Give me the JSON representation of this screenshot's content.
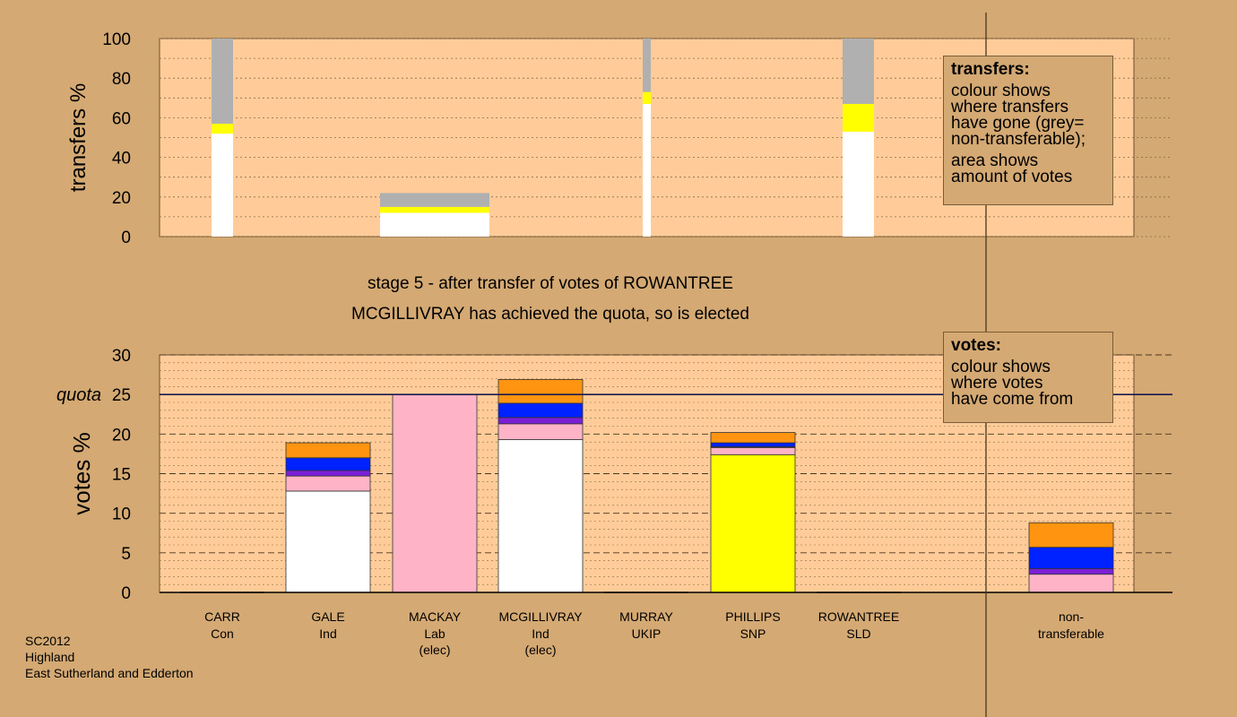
{
  "colors": {
    "background": "#d4a973",
    "plot": "#ffcc99",
    "grey": "#b0b0b0",
    "white": "#ffffff",
    "yellow": "#ffff00",
    "pink": "#ffb3c6",
    "purple": "#7b1fd6",
    "blue": "#0022ff",
    "orange": "#ff9410"
  },
  "captions": {
    "stage": "stage 5 - after transfer of votes of ROWANTREE",
    "status": "MCGILLIVRAY has achieved the quota, so is elected"
  },
  "legends": {
    "transfers": {
      "title": "transfers:",
      "para1": "colour shows\nwhere transfers\nhave gone (grey=\nnon-transferable);",
      "para2": "area shows\namount of votes"
    },
    "votes": {
      "title": "votes:",
      "para1": "colour shows\nwhere votes\nhave come from"
    }
  },
  "footer": {
    "line1": "SC2012",
    "line2": "Highland",
    "line3": "East Sutherland and Edderton"
  },
  "chart_data": [
    {
      "type": "bar",
      "name": "transfers",
      "ylabel": "transfers %",
      "ylim": [
        0,
        100
      ],
      "yticks": [
        0,
        20,
        40,
        60,
        80,
        100
      ],
      "grid": true,
      "bars": [
        {
          "segments": [
            [
              "white",
              52
            ],
            [
              "yellow",
              5
            ],
            [
              "grey",
              43
            ]
          ]
        },
        {
          "segments": [
            [
              "white",
              12
            ],
            [
              "yellow",
              3
            ],
            [
              "grey",
              7
            ]
          ]
        },
        {
          "segments": [
            [
              "white",
              67
            ],
            [
              "yellow",
              6
            ],
            [
              "grey",
              27
            ]
          ]
        },
        {
          "segments": [
            [
              "white",
              53
            ],
            [
              "yellow",
              14
            ],
            [
              "grey",
              33
            ]
          ]
        }
      ]
    },
    {
      "type": "bar",
      "name": "votes",
      "ylabel": "votes %",
      "ylim": [
        0,
        30
      ],
      "yticks": [
        0,
        5,
        10,
        15,
        20,
        25,
        30
      ],
      "quota": 25,
      "quota_label": "quota",
      "grid": true,
      "categories": [
        {
          "name": "CARR",
          "party": "Con",
          "note": "",
          "segments": []
        },
        {
          "name": "GALE",
          "party": "Ind",
          "note": "",
          "segments": [
            [
              "white",
              12.8
            ],
            [
              "pink",
              1.9
            ],
            [
              "purple",
              0.7
            ],
            [
              "blue",
              1.6
            ],
            [
              "orange",
              1.9
            ]
          ]
        },
        {
          "name": "MACKAY",
          "party": "Lab",
          "note": "(elec)",
          "segments": [
            [
              "pink",
              25.0
            ]
          ]
        },
        {
          "name": "MCGILLIVRAY",
          "party": "Ind",
          "note": "(elec)",
          "segments": [
            [
              "white",
              19.3
            ],
            [
              "pink",
              2.0
            ],
            [
              "purple",
              0.8
            ],
            [
              "blue",
              1.8
            ],
            [
              "orange",
              3.0
            ]
          ]
        },
        {
          "name": "MURRAY",
          "party": "UKIP",
          "note": "",
          "segments": []
        },
        {
          "name": "PHILLIPS",
          "party": "SNP",
          "note": "",
          "segments": [
            [
              "yellow",
              17.4
            ],
            [
              "pink",
              0.9
            ],
            [
              "purple",
              0.1
            ],
            [
              "blue",
              0.5
            ],
            [
              "orange",
              1.3
            ]
          ]
        },
        {
          "name": "ROWANTREE",
          "party": "SLD",
          "note": "",
          "segments": []
        },
        {
          "name": "non-",
          "party": "transferable",
          "note": "",
          "segments": [
            [
              "pink",
              2.3
            ],
            [
              "purple",
              0.7
            ],
            [
              "blue",
              2.7
            ],
            [
              "orange",
              3.1
            ]
          ]
        }
      ]
    }
  ]
}
